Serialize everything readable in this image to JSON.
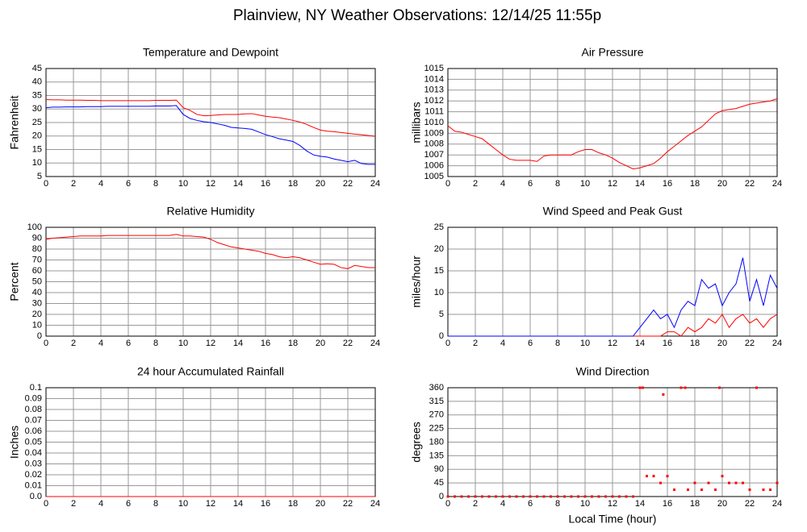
{
  "title": "Plainview, NY Weather Observations: 12/14/25 11:55p",
  "chart_data": [
    {
      "type": "line",
      "title": "Temperature and Dewpoint",
      "ylabel": "Fahrenheit",
      "x": [
        0,
        0.5,
        1,
        1.5,
        2,
        2.5,
        3,
        3.5,
        4,
        4.5,
        5,
        5.5,
        6,
        6.5,
        7,
        7.5,
        8,
        8.5,
        9,
        9.5,
        10,
        10.5,
        11,
        11.5,
        12,
        12.5,
        13,
        13.5,
        14,
        14.5,
        15,
        15.5,
        16,
        16.5,
        17,
        17.5,
        18,
        18.5,
        19,
        19.5,
        20,
        20.5,
        21,
        21.5,
        22,
        22.5,
        23,
        23.5,
        24
      ],
      "series": [
        {
          "color": "#ff0000",
          "values": [
            33.5,
            33.4,
            33.4,
            33.3,
            33.3,
            33.3,
            33.2,
            33.2,
            33.1,
            33.1,
            33.1,
            33.1,
            33.1,
            33.1,
            33.1,
            33.1,
            33.2,
            33.2,
            33.2,
            33.3,
            30.5,
            29.5,
            28,
            27.5,
            27.6,
            27.8,
            28,
            28,
            28,
            28.2,
            28.3,
            27.8,
            27.3,
            27,
            26.8,
            26.3,
            25.8,
            25.2,
            24.3,
            23.2,
            22.2,
            21.8,
            21.6,
            21.3,
            21,
            20.7,
            20.5,
            20.2,
            19.9
          ]
        },
        {
          "color": "#0000ff",
          "values": [
            30.5,
            30.7,
            30.7,
            30.8,
            30.8,
            30.8,
            30.9,
            30.9,
            30.9,
            31,
            31,
            31,
            31,
            31,
            31,
            31,
            31.1,
            31.1,
            31.1,
            31.3,
            28,
            26.5,
            25.8,
            25.3,
            25,
            24.5,
            24,
            23.2,
            23,
            22.8,
            22.5,
            21.5,
            20.5,
            19.8,
            19,
            18.5,
            18,
            16.5,
            14.5,
            13,
            12.5,
            12.2,
            11.5,
            11,
            10.5,
            11,
            9.8,
            9.5,
            9.5
          ]
        }
      ],
      "xlim": [
        0,
        24
      ],
      "xticks": [
        0,
        2,
        4,
        6,
        8,
        10,
        12,
        14,
        16,
        18,
        20,
        22,
        24
      ],
      "ylim": [
        5,
        45
      ],
      "yticks": [
        5,
        10,
        15,
        20,
        25,
        30,
        35,
        40,
        45
      ],
      "grid": true
    },
    {
      "type": "line",
      "title": "Air Pressure",
      "ylabel": "millibars",
      "x": [
        0,
        0.5,
        1,
        1.5,
        2,
        2.5,
        3,
        3.5,
        4,
        4.5,
        5,
        5.5,
        6,
        6.5,
        7,
        7.5,
        8,
        8.5,
        9,
        9.5,
        10,
        10.5,
        11,
        11.5,
        12,
        12.5,
        13,
        13.5,
        14,
        14.5,
        15,
        15.5,
        16,
        16.5,
        17,
        17.5,
        18,
        18.5,
        19,
        19.5,
        20,
        20.5,
        21,
        21.5,
        22,
        22.5,
        23,
        23.5,
        24
      ],
      "series": [
        {
          "color": "#ff0000",
          "values": [
            1009.7,
            1009.2,
            1009.1,
            1008.9,
            1008.7,
            1008.5,
            1008,
            1007.5,
            1007,
            1006.6,
            1006.5,
            1006.5,
            1006.5,
            1006.4,
            1006.9,
            1007,
            1007,
            1007,
            1007,
            1007.3,
            1007.5,
            1007.5,
            1007.2,
            1007,
            1006.7,
            1006.3,
            1006,
            1005.7,
            1005.8,
            1006,
            1006.2,
            1006.7,
            1007.3,
            1007.8,
            1008.3,
            1008.8,
            1009.2,
            1009.6,
            1010.2,
            1010.8,
            1011.1,
            1011.2,
            1011.3,
            1011.5,
            1011.7,
            1011.8,
            1011.9,
            1012,
            1012.2
          ]
        }
      ],
      "xlim": [
        0,
        24
      ],
      "xticks": [
        0,
        2,
        4,
        6,
        8,
        10,
        12,
        14,
        16,
        18,
        20,
        22,
        24
      ],
      "ylim": [
        1005,
        1015
      ],
      "yticks": [
        1005,
        1006,
        1007,
        1008,
        1009,
        1010,
        1011,
        1012,
        1013,
        1014,
        1015
      ],
      "grid": true
    },
    {
      "type": "line",
      "title": "Relative Humidity",
      "ylabel": "Percent",
      "x": [
        0,
        0.5,
        1,
        1.5,
        2,
        2.5,
        3,
        3.5,
        4,
        4.5,
        5,
        5.5,
        6,
        6.5,
        7,
        7.5,
        8,
        8.5,
        9,
        9.5,
        10,
        10.5,
        11,
        11.5,
        12,
        12.5,
        13,
        13.5,
        14,
        14.5,
        15,
        15.5,
        16,
        16.5,
        17,
        17.5,
        18,
        18.5,
        19,
        19.5,
        20,
        20.5,
        21,
        21.5,
        22,
        22.5,
        23,
        23.5,
        24
      ],
      "series": [
        {
          "color": "#ff0000",
          "values": [
            89,
            90,
            90.5,
            91,
            91.5,
            92,
            92,
            92,
            92,
            92.5,
            92.5,
            92.5,
            92.5,
            92.5,
            92.5,
            92.5,
            92.5,
            92.5,
            92.5,
            93.5,
            92,
            92,
            91.5,
            91,
            89,
            86,
            84,
            82,
            81,
            80,
            79,
            78,
            76,
            75,
            73,
            72,
            73,
            72,
            70,
            68,
            66,
            66.5,
            66,
            63,
            62,
            65,
            64,
            63,
            63
          ]
        }
      ],
      "xlim": [
        0,
        24
      ],
      "xticks": [
        0,
        2,
        4,
        6,
        8,
        10,
        12,
        14,
        16,
        18,
        20,
        22,
        24
      ],
      "ylim": [
        0,
        100
      ],
      "yticks": [
        0,
        10,
        20,
        30,
        40,
        50,
        60,
        70,
        80,
        90,
        100
      ],
      "grid": true
    },
    {
      "type": "line",
      "title": "Wind Speed and Peak Gust",
      "ylabel": "miles/hour",
      "x": [
        0,
        0.5,
        1,
        1.5,
        2,
        2.5,
        3,
        3.5,
        4,
        4.5,
        5,
        5.5,
        6,
        6.5,
        7,
        7.5,
        8,
        8.5,
        9,
        9.5,
        10,
        10.5,
        11,
        11.5,
        12,
        12.5,
        13,
        13.5,
        14,
        14.5,
        15,
        15.5,
        16,
        16.5,
        17,
        17.5,
        18,
        18.5,
        19,
        19.5,
        20,
        20.5,
        21,
        21.5,
        22,
        22.5,
        23,
        23.5,
        24
      ],
      "series": [
        {
          "color": "#ff0000",
          "values": [
            0,
            0,
            0,
            0,
            0,
            0,
            0,
            0,
            0,
            0,
            0,
            0,
            0,
            0,
            0,
            0,
            0,
            0,
            0,
            0,
            0,
            0,
            0,
            0,
            0,
            0,
            0,
            0,
            0,
            0,
            0,
            0,
            1,
            1,
            0,
            2,
            1,
            2,
            4,
            3,
            5,
            2,
            4,
            5,
            3,
            4,
            2,
            4,
            5
          ]
        },
        {
          "color": "#0000ff",
          "values": [
            0,
            0,
            0,
            0,
            0,
            0,
            0,
            0,
            0,
            0,
            0,
            0,
            0,
            0,
            0,
            0,
            0,
            0,
            0,
            0,
            0,
            0,
            0,
            0,
            0,
            0,
            0,
            0,
            2,
            4,
            6,
            4,
            5,
            2,
            6,
            8,
            7,
            13,
            11,
            12,
            7,
            10,
            12,
            18,
            8,
            13,
            7,
            14,
            11
          ]
        }
      ],
      "xlim": [
        0,
        24
      ],
      "xticks": [
        0,
        2,
        4,
        6,
        8,
        10,
        12,
        14,
        16,
        18,
        20,
        22,
        24
      ],
      "ylim": [
        0,
        25
      ],
      "yticks": [
        0,
        5,
        10,
        15,
        20,
        25
      ],
      "grid": true
    },
    {
      "type": "line",
      "title": "24 hour Accumulated Rainfall",
      "ylabel": "Inches",
      "x": [
        0,
        24
      ],
      "series": [
        {
          "color": "#ff0000",
          "values": [
            0,
            0
          ]
        }
      ],
      "xlim": [
        0,
        24
      ],
      "xticks": [
        0,
        2,
        4,
        6,
        8,
        10,
        12,
        14,
        16,
        18,
        20,
        22,
        24
      ],
      "ylim": [
        0,
        0.1
      ],
      "yticks": [
        {
          "value": 0,
          "label": "0.0"
        },
        0.01,
        0.02,
        0.03,
        0.04,
        0.05,
        0.06,
        0.07,
        0.08,
        0.09,
        0.1
      ],
      "grid": true
    },
    {
      "type": "scatter",
      "title": "Wind Direction",
      "ylabel": "degrees",
      "xlabel": "Local Time (hour)",
      "x": [
        0,
        0.5,
        1,
        1.5,
        2,
        2.5,
        3,
        3.5,
        4,
        4.5,
        5,
        5.5,
        6,
        6.5,
        7,
        7.5,
        8,
        8.5,
        9,
        9.5,
        10,
        10.5,
        11,
        11.5,
        12,
        12.5,
        13,
        13.5,
        14,
        14.5,
        15,
        15.5,
        16,
        16.5,
        17,
        17.5,
        18,
        18.5,
        19,
        19.5,
        20,
        20.5,
        21,
        21.5,
        22,
        22.5,
        23,
        23.5,
        24,
        14.2,
        15.7,
        17.3,
        19.8
      ],
      "series": [
        {
          "color": "#ff0000",
          "values": [
            0,
            0,
            0,
            0,
            0,
            0,
            0,
            0,
            0,
            0,
            0,
            0,
            0,
            0,
            0,
            0,
            0,
            0,
            0,
            0,
            0,
            0,
            0,
            0,
            0,
            0,
            0,
            0,
            360,
            67.5,
            67.5,
            45,
            67.5,
            22.5,
            360,
            22.5,
            45,
            22.5,
            45,
            22.5,
            67.5,
            45,
            45,
            45,
            22.5,
            360,
            22.5,
            22.5,
            45,
            360,
            337.5,
            360,
            360
          ]
        }
      ],
      "xlim": [
        0,
        24
      ],
      "xticks": [
        0,
        2,
        4,
        6,
        8,
        10,
        12,
        14,
        16,
        18,
        20,
        22,
        24
      ],
      "ylim": [
        0,
        360
      ],
      "yticks": [
        0,
        45,
        90,
        135,
        180,
        225,
        270,
        315,
        360
      ],
      "grid": true
    }
  ]
}
